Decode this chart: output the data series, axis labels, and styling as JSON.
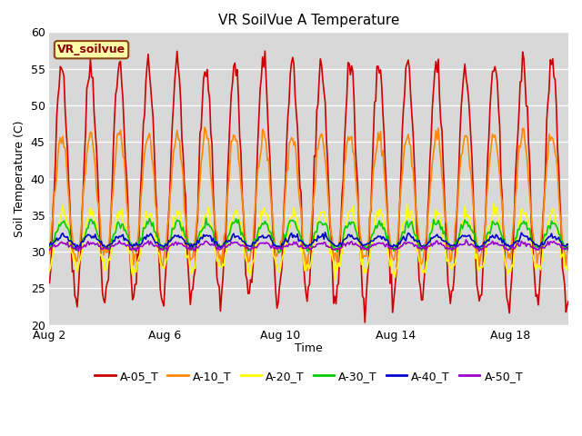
{
  "title": "VR SoilVue A Temperature",
  "xlabel": "Time",
  "ylabel": "Soil Temperature (C)",
  "ylim": [
    20,
    60
  ],
  "x_ticks_days": [
    0,
    4,
    8,
    12,
    16
  ],
  "x_tick_labels": [
    "Aug 2",
    "Aug 6",
    "Aug 10",
    "Aug 14",
    "Aug 18"
  ],
  "outer_bg_color": "#ffffff",
  "plot_bg_color": "#d8d8d8",
  "grid_color": "#ffffff",
  "annotation_box_text": "VR_soilvue",
  "annotation_box_facecolor": "#ffffaa",
  "annotation_box_edgecolor": "#8B4513",
  "series_colors": {
    "A-05_T": "#cc0000",
    "A-10_T": "#ff8800",
    "A-20_T": "#ffff00",
    "A-30_T": "#00cc00",
    "A-40_T": "#0000cc",
    "A-50_T": "#9900cc"
  },
  "legend_colors": [
    "#cc0000",
    "#ff8800",
    "#ffff00",
    "#00cc00",
    "#0000cc",
    "#9900cc"
  ],
  "legend_labels": [
    "A-05_T",
    "A-10_T",
    "A-20_T",
    "A-30_T",
    "A-40_T",
    "A-50_T"
  ],
  "title_fontsize": 11,
  "axis_fontsize": 9,
  "legend_fontsize": 9,
  "line_width": 1.2
}
